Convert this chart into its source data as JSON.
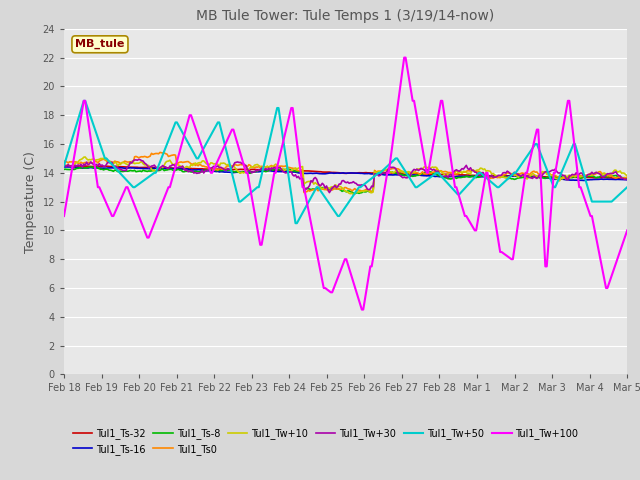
{
  "title": "MB Tule Tower: Tule Temps 1 (3/19/14-now)",
  "ylabel": "Temperature (C)",
  "ylim": [
    0,
    24
  ],
  "yticks": [
    0,
    2,
    4,
    6,
    8,
    10,
    12,
    14,
    16,
    18,
    20,
    22,
    24
  ],
  "legend_box_label": "MB_tule",
  "background_color": "#d8d8d8",
  "plot_bg_color": "#e8e8e8",
  "grid_color": "#ffffff",
  "xtick_labels": [
    "Feb 18",
    "Feb 19",
    "Feb 20",
    "Feb 21",
    "Feb 22",
    "Feb 23",
    "Feb 24",
    "Feb 25",
    "Feb 26",
    "Feb 27",
    "Feb 28",
    "Mar 1",
    "Mar 2",
    "Mar 3",
    "Mar 4",
    "Mar 5"
  ],
  "series": [
    {
      "label": "Tul1_Ts-32",
      "color": "#cc0000",
      "lw": 1.2
    },
    {
      "label": "Tul1_Ts-16",
      "color": "#0000cc",
      "lw": 1.2
    },
    {
      "label": "Tul1_Ts-8",
      "color": "#00bb00",
      "lw": 1.2
    },
    {
      "label": "Tul1_Ts0",
      "color": "#ff8800",
      "lw": 1.2
    },
    {
      "label": "Tul1_Tw+10",
      "color": "#cccc00",
      "lw": 1.2
    },
    {
      "label": "Tul1_Tw+30",
      "color": "#aa00aa",
      "lw": 1.2
    },
    {
      "label": "Tul1_Tw+50",
      "color": "#00cccc",
      "lw": 1.5
    },
    {
      "label": "Tul1_Tw+100",
      "color": "#ff00ff",
      "lw": 1.5
    }
  ],
  "legend_ncol": 6,
  "title_color": "#555555",
  "tick_color": "#555555",
  "legend_box_bg": "#ffffcc",
  "legend_box_edge": "#aa8800",
  "legend_title_color": "#880000"
}
